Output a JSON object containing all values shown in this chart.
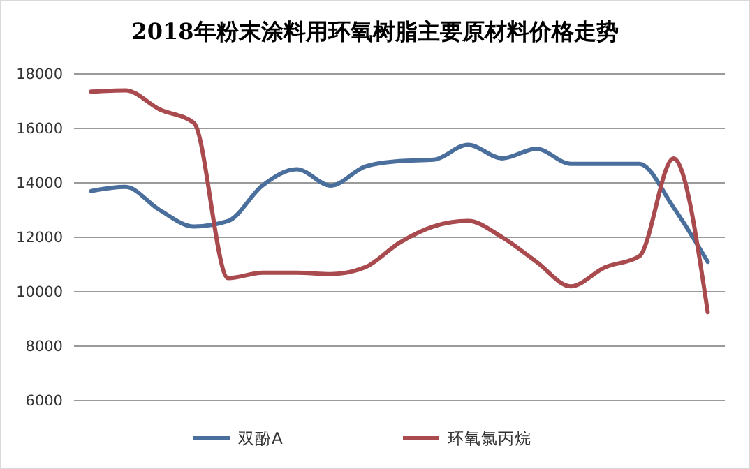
{
  "chart_data": {
    "type": "line",
    "title": "2018年粉末涂料用环氧树脂主要原材料价格走势",
    "categories": [
      null,
      null,
      null,
      null,
      null,
      null,
      null,
      null,
      null,
      null,
      null,
      null,
      null,
      null,
      null,
      null,
      null,
      null,
      null
    ],
    "series": [
      {
        "name": "双酚A",
        "color": "#4a6f9c",
        "values": [
          13700,
          13850,
          13000,
          12400,
          12600,
          13900,
          14500,
          13900,
          14600,
          14800,
          14850,
          15400,
          14900,
          15250,
          14700,
          14700,
          14700,
          13100,
          11100
        ]
      },
      {
        "name": "环氧氯丙烷",
        "color": "#a94a4e",
        "values": [
          17350,
          17400,
          16700,
          16200,
          10500,
          10700,
          10700,
          10650,
          10900,
          11800,
          12400,
          12600,
          12000,
          11100,
          10200,
          10900,
          11300,
          14900,
          9250
        ]
      }
    ],
    "ylim": [
      6000,
      18000
    ],
    "yticks": [
      6000,
      8000,
      10000,
      12000,
      14000,
      16000,
      18000
    ],
    "grid": "y",
    "legend": "bottom",
    "marker": "none",
    "line_style": "solid"
  }
}
